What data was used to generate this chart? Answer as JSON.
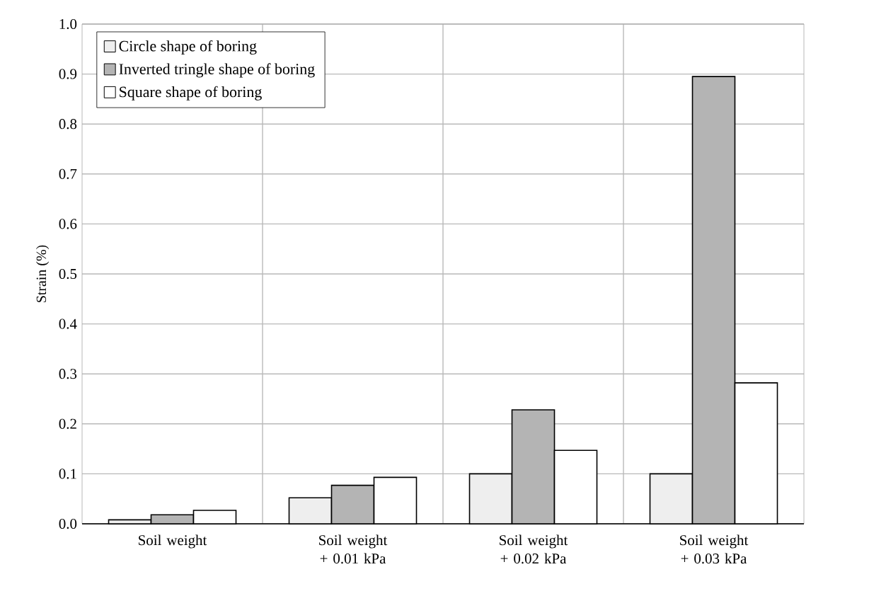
{
  "chart_data": {
    "type": "bar",
    "ylabel": "Strain (%)",
    "categories": [
      "Soil weight",
      "Soil weight + 0.01 kPa",
      "Soil weight + 0.02 kPa",
      "Soil weight + 0.03 kPa"
    ],
    "series": [
      {
        "name": "Circle shape of boring",
        "color": "#eeeeee",
        "values": [
          0.008,
          0.052,
          0.1,
          0.1
        ]
      },
      {
        "name": "Inverted tringle shape of boring",
        "color": "#b4b4b4",
        "values": [
          0.018,
          0.077,
          0.228,
          0.895
        ]
      },
      {
        "name": "Square shape of boring",
        "color": "#ffffff",
        "values": [
          0.027,
          0.093,
          0.147,
          0.282
        ]
      }
    ],
    "ylim": [
      0,
      1.0
    ],
    "yticks": [
      {
        "value": 0,
        "label": "0.0"
      },
      {
        "value": 0.1,
        "label": "0.1"
      },
      {
        "value": 0.2,
        "label": "0.2"
      },
      {
        "value": 0.3,
        "label": "0.3"
      },
      {
        "value": 0.4,
        "label": "0.4"
      },
      {
        "value": 0.5,
        "label": "0.5"
      },
      {
        "value": 0.6,
        "label": "0.6"
      },
      {
        "value": 0.7,
        "label": "0.7"
      },
      {
        "value": 0.8,
        "label": "0.8"
      },
      {
        "value": 0.9,
        "label": "0.9"
      },
      {
        "value": 1.0,
        "label": "1.0"
      }
    ],
    "grid": true,
    "legend": "top left"
  }
}
